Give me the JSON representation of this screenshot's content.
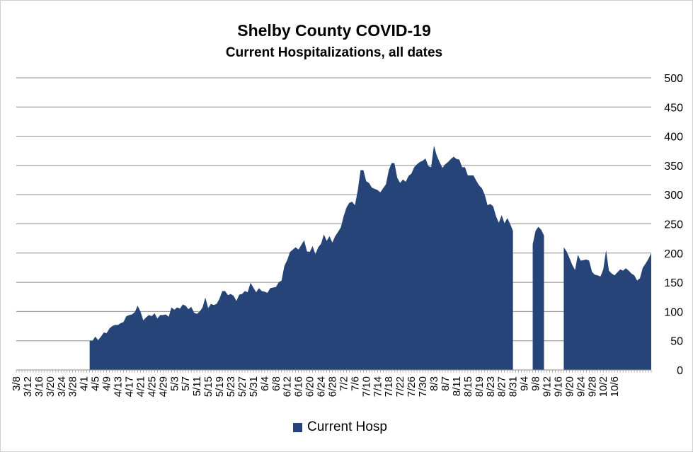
{
  "chart_data": {
    "type": "area",
    "title": "Shelby County COVID-19",
    "subtitle": "Current Hospitalizations, all dates",
    "ylim": [
      0,
      500
    ],
    "y_ticks": [
      0,
      50,
      100,
      150,
      200,
      250,
      300,
      350,
      400,
      450,
      500
    ],
    "y_axis_position": "right",
    "grid": true,
    "legend_position": "bottom",
    "color": "#264478",
    "x_tick_labels": [
      "3/8",
      "3/12",
      "3/16",
      "3/20",
      "3/24",
      "3/28",
      "4/1",
      "4/5",
      "4/9",
      "4/13",
      "4/17",
      "4/21",
      "4/25",
      "4/29",
      "5/3",
      "5/7",
      "5/11",
      "5/15",
      "5/19",
      "5/23",
      "5/27",
      "5/31",
      "6/4",
      "6/8",
      "6/12",
      "6/16",
      "6/20",
      "6/24",
      "6/28",
      "7/2",
      "7/6",
      "7/10",
      "7/14",
      "7/18",
      "7/22",
      "7/26",
      "7/30",
      "8/3",
      "8/7",
      "8/11",
      "8/15",
      "8/19",
      "8/23",
      "8/27",
      "8/31",
      "9/4",
      "9/8",
      "9/12",
      "9/16",
      "9/20",
      "9/24",
      "9/28",
      "10/2",
      "10/6"
    ],
    "series": [
      {
        "name": "Current Hosp",
        "start_date": "3/8",
        "values": [
          null,
          null,
          null,
          null,
          null,
          null,
          null,
          null,
          null,
          null,
          null,
          null,
          null,
          null,
          null,
          null,
          null,
          null,
          null,
          null,
          null,
          null,
          null,
          null,
          null,
          null,
          50,
          50,
          57,
          51,
          57,
          64,
          63,
          71,
          75,
          77,
          77,
          80,
          82,
          92,
          94,
          95,
          99,
          110,
          100,
          85,
          90,
          94,
          92,
          97,
          88,
          94,
          94,
          95,
          91,
          107,
          103,
          107,
          105,
          112,
          110,
          104,
          108,
          98,
          96,
          100,
          107,
          124,
          106,
          113,
          111,
          113,
          122,
          135,
          135,
          128,
          130,
          127,
          118,
          129,
          130,
          135,
          133,
          149,
          141,
          133,
          140,
          135,
          134,
          132,
          140,
          141,
          142,
          150,
          153,
          178,
          188,
          202,
          206,
          210,
          206,
          214,
          222,
          203,
          202,
          212,
          198,
          210,
          216,
          232,
          221,
          229,
          218,
          229,
          236,
          244,
          263,
          278,
          286,
          288,
          282,
          307,
          342,
          342,
          323,
          320,
          312,
          310,
          308,
          304,
          311,
          318,
          342,
          354,
          354,
          329,
          320,
          326,
          322,
          332,
          336,
          347,
          352,
          356,
          358,
          362,
          349,
          347,
          384,
          367,
          356,
          346,
          352,
          356,
          361,
          365,
          361,
          360,
          347,
          347,
          333,
          333,
          333,
          324,
          316,
          311,
          300,
          282,
          284,
          280,
          263,
          252,
          265,
          251,
          260,
          250,
          238,
          null,
          null,
          null,
          null,
          null,
          null,
          215,
          238,
          245,
          240,
          230,
          null,
          null,
          null,
          null,
          null,
          null,
          210,
          203,
          192,
          180,
          171,
          197,
          187,
          188,
          189,
          187,
          168,
          163,
          162,
          160,
          172,
          205,
          170,
          165,
          162,
          167,
          172,
          170,
          174,
          170,
          165,
          162,
          153,
          157,
          175,
          182,
          190,
          200
        ]
      }
    ]
  },
  "legend": {
    "label": "Current Hosp",
    "color": "#264478"
  }
}
